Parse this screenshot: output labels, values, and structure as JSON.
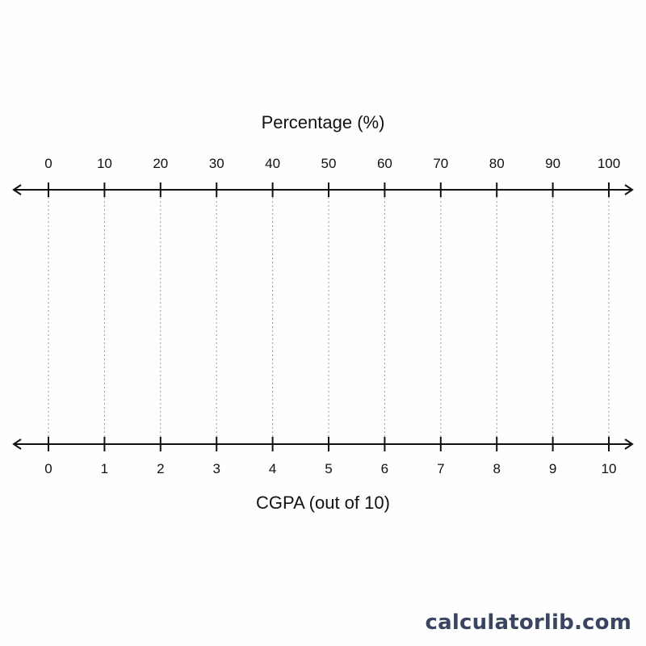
{
  "top_scale": {
    "title": "Percentage (%)",
    "min": 0,
    "max": 100,
    "ticks": [
      "0",
      "10",
      "20",
      "30",
      "40",
      "50",
      "60",
      "70",
      "80",
      "90",
      "100"
    ]
  },
  "bottom_scale": {
    "title": "CGPA (out of 10)",
    "min": 0,
    "max": 10,
    "ticks": [
      "0",
      "1",
      "2",
      "3",
      "4",
      "5",
      "6",
      "7",
      "8",
      "9",
      "10"
    ]
  },
  "watermark": "calculatorlib.com",
  "colors": {
    "axis": "#111111",
    "guide": "#9a9a9a",
    "watermark": "#3a4560"
  }
}
